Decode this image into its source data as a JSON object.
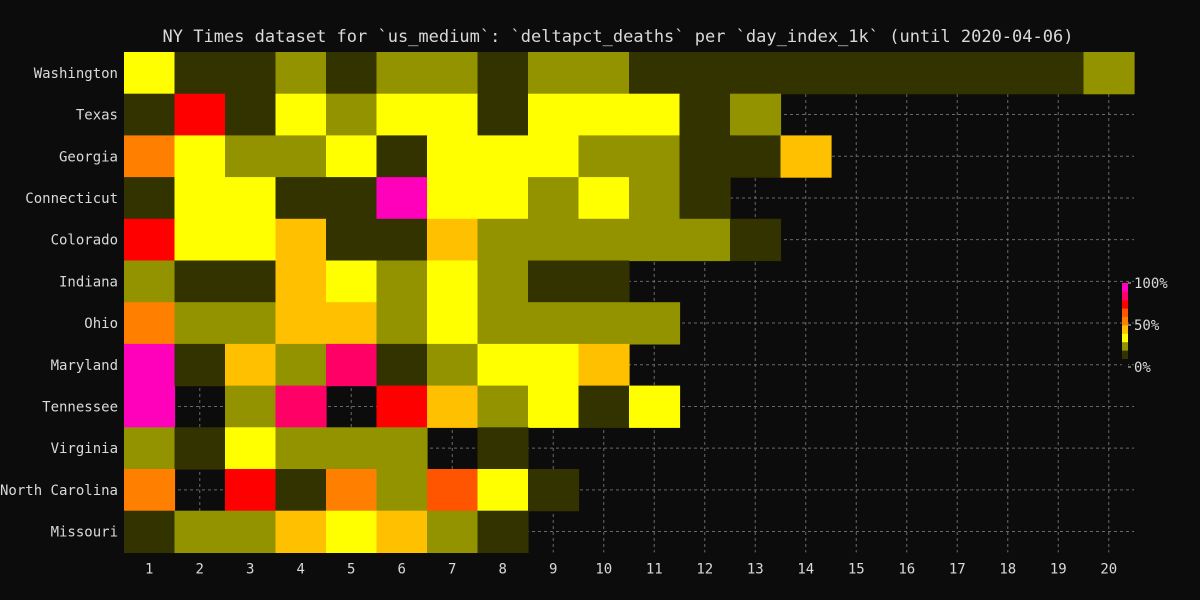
{
  "chart_data": {
    "type": "heatmap",
    "title": "NY Times dataset for `us_medium`: `deltapct_deaths` per `day_index_1k` (until 2020-04-06)",
    "xlabel": "",
    "ylabel": "",
    "x": [
      1,
      2,
      3,
      4,
      5,
      6,
      7,
      8,
      9,
      10,
      11,
      12,
      13,
      14,
      15,
      16,
      17,
      18,
      19,
      20
    ],
    "y": [
      "Washington",
      "Texas",
      "Georgia",
      "Connecticut",
      "Colorado",
      "Indiana",
      "Ohio",
      "Maryland",
      "Tennessee",
      "Virginia",
      "North Carolina",
      "Missouri"
    ],
    "value_unit": "percent",
    "values": [
      [
        30,
        5,
        5,
        15,
        5,
        15,
        15,
        5,
        15,
        15,
        5,
        5,
        5,
        5,
        5,
        5,
        5,
        5,
        5,
        15
      ],
      [
        5,
        60,
        5,
        30,
        15,
        30,
        30,
        5,
        30,
        30,
        30,
        5,
        15,
        null,
        null,
        null,
        null,
        null,
        null,
        null
      ],
      [
        50,
        30,
        15,
        15,
        30,
        5,
        30,
        30,
        30,
        15,
        15,
        5,
        5,
        40,
        null,
        null,
        null,
        null,
        null,
        null
      ],
      [
        5,
        30,
        30,
        5,
        5,
        100,
        30,
        30,
        15,
        30,
        15,
        5,
        null,
        null,
        null,
        null,
        null,
        null,
        null,
        null
      ],
      [
        60,
        30,
        30,
        40,
        5,
        5,
        40,
        15,
        15,
        15,
        15,
        15,
        5,
        null,
        null,
        null,
        null,
        null,
        null,
        null
      ],
      [
        15,
        5,
        5,
        40,
        30,
        15,
        30,
        15,
        5,
        5,
        null,
        null,
        null,
        null,
        null,
        null,
        null,
        null,
        null,
        null
      ],
      [
        50,
        15,
        15,
        40,
        40,
        15,
        30,
        15,
        15,
        15,
        15,
        null,
        null,
        null,
        null,
        null,
        null,
        null,
        null,
        null
      ],
      [
        90,
        5,
        40,
        15,
        80,
        5,
        15,
        30,
        30,
        40,
        null,
        null,
        null,
        null,
        null,
        null,
        null,
        null,
        null,
        null
      ],
      [
        90,
        null,
        15,
        80,
        null,
        60,
        40,
        15,
        30,
        5,
        30,
        null,
        null,
        null,
        null,
        null,
        null,
        null,
        null,
        null
      ],
      [
        15,
        5,
        30,
        15,
        15,
        15,
        null,
        5,
        null,
        null,
        null,
        null,
        null,
        null,
        null,
        null,
        null,
        null,
        null,
        null
      ],
      [
        50,
        null,
        60,
        5,
        50,
        15,
        55,
        30,
        5,
        null,
        null,
        null,
        null,
        null,
        null,
        null,
        null,
        null,
        null,
        null
      ],
      [
        5,
        15,
        15,
        40,
        30,
        40,
        15,
        5,
        null,
        null,
        null,
        null,
        null,
        null,
        null,
        null,
        null,
        null,
        null,
        null
      ]
    ],
    "colorbar": {
      "labels": [
        "100%",
        "50%",
        "0%"
      ],
      "ticks": [
        100,
        50,
        0
      ],
      "colors": [
        "#0c0c0c",
        "#333300",
        "#939300",
        "#ffff00",
        "#ffc000",
        "#ff7f00",
        "#ff5500",
        "#ff0000",
        "#ff0066",
        "#ff00bb"
      ]
    },
    "grid": true,
    "background": "#0c0c0c"
  }
}
